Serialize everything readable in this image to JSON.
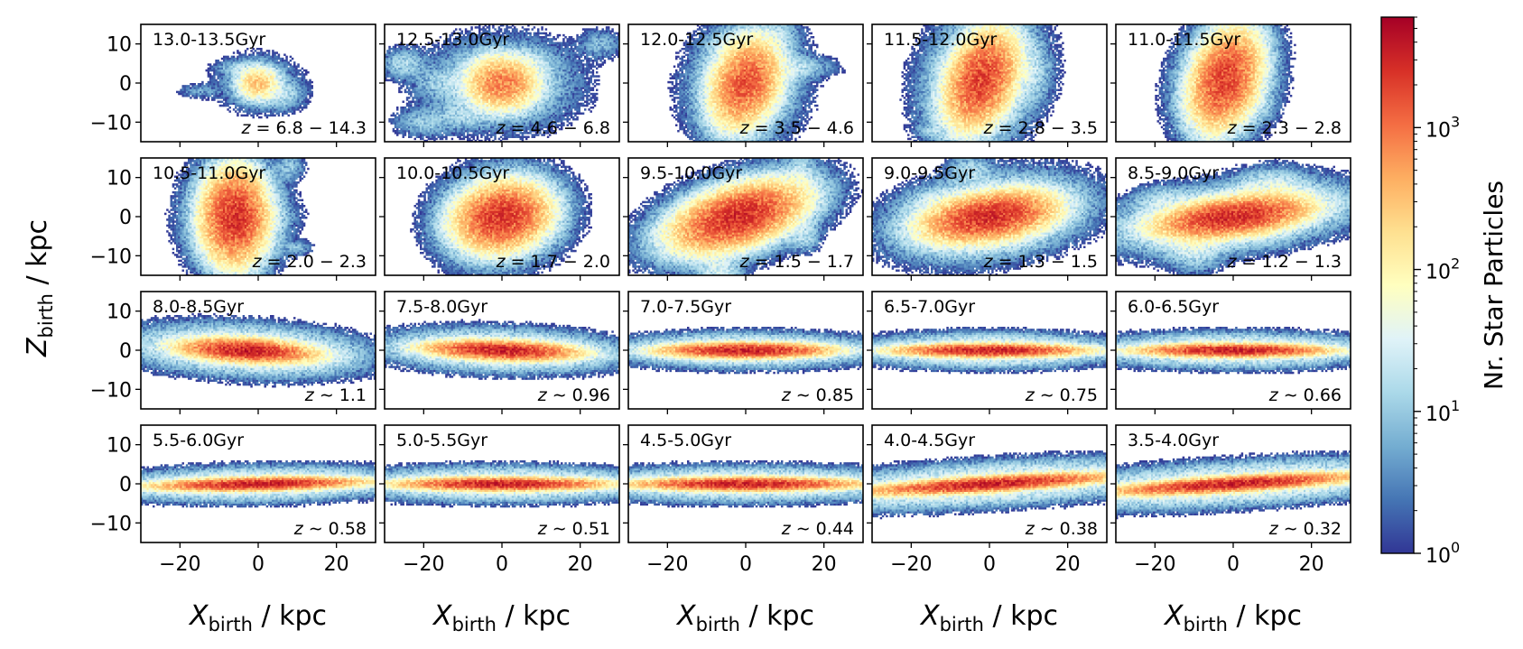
{
  "chart_data": {
    "type": "heatmap",
    "layout": {
      "rows": 4,
      "cols": 5,
      "sharex": true,
      "sharey": true
    },
    "xlabel": "X_birth / kpc",
    "ylabel": "Z_birth / kpc",
    "xlabel_parts": {
      "main": "X",
      "sub": "birth",
      "unit": " / kpc"
    },
    "ylabel_parts": {
      "main": "Z",
      "sub": "birth",
      "unit": " / kpc"
    },
    "xlim": [
      -30,
      30
    ],
    "ylim": [
      -15,
      15
    ],
    "xticks": [
      -20,
      0,
      20
    ],
    "yticks": [
      -10,
      0,
      10
    ],
    "xtick_labels": [
      "−20",
      "0",
      "20"
    ],
    "ytick_labels": [
      "−10",
      "0",
      "10"
    ],
    "colorbar": {
      "label": "Nr. Star Particles",
      "scale": "log",
      "cmap": "RdYlBu_r",
      "range": [
        1,
        6000
      ],
      "ticks": [
        {
          "value": 1,
          "base": "10",
          "exp": "0"
        },
        {
          "value": 10,
          "base": "10",
          "exp": "1"
        },
        {
          "value": 100,
          "base": "10",
          "exp": "2"
        },
        {
          "value": 1000,
          "base": "10",
          "exp": "3"
        }
      ]
    },
    "panels": [
      {
        "age": "13.0-13.5Gyr",
        "z_text": "z = 6.8 − 14.3",
        "peak": 300,
        "center": [
          0,
          0
        ],
        "core": [
          2.5,
          2
        ],
        "halo": [
          6,
          4
        ],
        "tilt": 0,
        "clumps": [
          [
            -15,
            -2,
            3,
            1,
            5
          ],
          [
            -5,
            4,
            3,
            1,
            10
          ],
          [
            6,
            -3,
            3,
            2,
            15
          ]
        ]
      },
      {
        "age": "12.5-13.0Gyr",
        "z_text": "z = 4.6 − 6.8",
        "peak": 900,
        "center": [
          0,
          0
        ],
        "core": [
          4,
          3
        ],
        "halo": [
          10,
          6
        ],
        "tilt": 0,
        "clumps": [
          [
            -25,
            5,
            3,
            2,
            15
          ],
          [
            -20,
            -10,
            4,
            2,
            10
          ],
          [
            -10,
            -8,
            4,
            2,
            12
          ],
          [
            -15,
            0,
            4,
            2,
            10
          ],
          [
            8,
            5,
            3,
            2,
            10
          ],
          [
            25,
            10,
            3,
            2,
            8
          ]
        ]
      },
      {
        "age": "12.0-12.5Gyr",
        "z_text": "z = 3.5 − 4.6",
        "peak": 1500,
        "center": [
          0,
          0
        ],
        "core": [
          3.5,
          5
        ],
        "halo": [
          7,
          8
        ],
        "tilt": -0.4,
        "clumps": [
          [
            10,
            4,
            6,
            1.5,
            20
          ],
          [
            -5,
            10,
            3,
            2,
            10
          ],
          [
            8,
            13,
            3,
            2,
            8
          ]
        ]
      },
      {
        "age": "11.5-12.0Gyr",
        "z_text": "z = 2.8 − 3.5",
        "peak": 2000,
        "center": [
          -2,
          1
        ],
        "core": [
          3.5,
          5.5
        ],
        "halo": [
          7,
          9
        ],
        "tilt": -0.4,
        "clumps": [
          [
            -15,
            -12,
            2,
            1,
            8
          ],
          [
            10,
            3,
            3,
            4,
            15
          ]
        ]
      },
      {
        "age": "11.0-11.5Gyr",
        "z_text": "z = 2.3 − 2.8",
        "peak": 2000,
        "center": [
          -2,
          1
        ],
        "core": [
          3.5,
          5.5
        ],
        "halo": [
          6,
          8
        ],
        "tilt": -0.35,
        "clumps": [
          [
            5,
            -5,
            3,
            3,
            10
          ]
        ]
      },
      {
        "age": "10.5-11.0Gyr",
        "z_text": "z = 2.0 − 2.3",
        "peak": 2500,
        "center": [
          -6,
          0
        ],
        "core": [
          3.5,
          5
        ],
        "halo": [
          6,
          7
        ],
        "tilt": 0,
        "clumps": [
          [
            -11,
            -10,
            2,
            2,
            15
          ],
          [
            10,
            -8,
            2,
            1,
            8
          ],
          [
            8,
            13,
            2,
            2,
            10
          ],
          [
            0,
            0,
            5,
            2,
            8
          ]
        ]
      },
      {
        "age": "10.0-10.5Gyr",
        "z_text": "z = 1.7 − 2.0",
        "peak": 2500,
        "center": [
          0,
          0
        ],
        "core": [
          5,
          3.5
        ],
        "halo": [
          8,
          6
        ],
        "tilt": 0.2,
        "clumps": []
      },
      {
        "age": "9.5-10.0Gyr",
        "z_text": "z = 1.5 − 1.7",
        "peak": 2800,
        "center": [
          -2,
          0
        ],
        "core": [
          7,
          3
        ],
        "halo": [
          11,
          5
        ],
        "tilt": 0.3,
        "clumps": [
          [
            14,
            10,
            2,
            4,
            15
          ],
          [
            15,
            -5,
            2,
            2,
            15
          ],
          [
            -7,
            -14,
            3,
            3,
            25
          ]
        ]
      },
      {
        "age": "9.0-9.5Gyr",
        "z_text": "z = 1.3 − 1.5",
        "peak": 2800,
        "center": [
          0,
          0
        ],
        "core": [
          7,
          2.5
        ],
        "halo": [
          12,
          5
        ],
        "tilt": 0.15,
        "clumps": [
          [
            -5,
            12,
            3,
            2,
            15
          ],
          [
            -12,
            4,
            5,
            2,
            15
          ],
          [
            5,
            -5,
            4,
            2,
            10
          ]
        ]
      },
      {
        "age": "8.5-9.0Gyr",
        "z_text": "z = 1.2 − 1.3",
        "peak": 3000,
        "center": [
          0,
          0
        ],
        "core": [
          8,
          2
        ],
        "halo": [
          15,
          4
        ],
        "tilt": 0.12,
        "clumps": [
          [
            -10,
            -5,
            4,
            4,
            40
          ],
          [
            10,
            6,
            5,
            3,
            40
          ],
          [
            -18,
            4,
            4,
            2,
            15
          ],
          [
            8,
            -3,
            3,
            2,
            20
          ]
        ]
      },
      {
        "age": "8.0-8.5Gyr",
        "z_text": "z ∼ 1.1",
        "peak": 3500,
        "center": [
          -3,
          0
        ],
        "core": [
          7,
          1.2
        ],
        "halo": [
          14,
          3
        ],
        "tilt": -0.05,
        "clumps": [
          [
            10,
            -2,
            6,
            1.5,
            20
          ]
        ]
      },
      {
        "age": "7.5-8.0Gyr",
        "z_text": "z ∼ 0.96",
        "peak": 3500,
        "center": [
          0,
          0
        ],
        "core": [
          8,
          1
        ],
        "halo": [
          14,
          2.5
        ],
        "tilt": -0.03,
        "clumps": []
      },
      {
        "age": "7.0-7.5Gyr",
        "z_text": "z ∼ 0.85",
        "peak": 3500,
        "center": [
          0,
          0
        ],
        "core": [
          9,
          0.8
        ],
        "halo": [
          15,
          2
        ],
        "tilt": 0,
        "clumps": []
      },
      {
        "age": "6.5-7.0Gyr",
        "z_text": "z ∼ 0.75",
        "peak": 3500,
        "center": [
          0,
          0
        ],
        "core": [
          10,
          0.7
        ],
        "halo": [
          15,
          2
        ],
        "tilt": 0,
        "clumps": []
      },
      {
        "age": "6.0-6.5Gyr",
        "z_text": "z ∼ 0.66",
        "peak": 3500,
        "center": [
          0,
          0
        ],
        "core": [
          10,
          0.7
        ],
        "halo": [
          17,
          2
        ],
        "tilt": 0,
        "clumps": []
      },
      {
        "age": "5.5-6.0Gyr",
        "z_text": "z ∼ 0.58",
        "peak": 3500,
        "center": [
          0,
          0
        ],
        "core": [
          11,
          0.7
        ],
        "halo": [
          18,
          2
        ],
        "tilt": 0.02,
        "clumps": []
      },
      {
        "age": "5.0-5.5Gyr",
        "z_text": "z ∼ 0.51",
        "peak": 3500,
        "center": [
          0,
          0
        ],
        "core": [
          11,
          0.7
        ],
        "halo": [
          18,
          2
        ],
        "tilt": 0,
        "clumps": []
      },
      {
        "age": "4.5-5.0Gyr",
        "z_text": "z ∼ 0.44",
        "peak": 3500,
        "center": [
          0,
          0
        ],
        "core": [
          12,
          0.7
        ],
        "halo": [
          20,
          2
        ],
        "tilt": 0,
        "clumps": []
      },
      {
        "age": "4.0-4.5Gyr",
        "z_text": "z ∼ 0.38",
        "peak": 3500,
        "center": [
          0,
          0
        ],
        "core": [
          13,
          0.8
        ],
        "halo": [
          24,
          2.5
        ],
        "tilt": 0.06,
        "clumps": []
      },
      {
        "age": "3.5-4.0Gyr",
        "z_text": "z ∼ 0.32",
        "peak": 3500,
        "center": [
          0,
          0
        ],
        "core": [
          13,
          0.8
        ],
        "halo": [
          24,
          2.5
        ],
        "tilt": 0.06,
        "clumps": []
      }
    ]
  }
}
